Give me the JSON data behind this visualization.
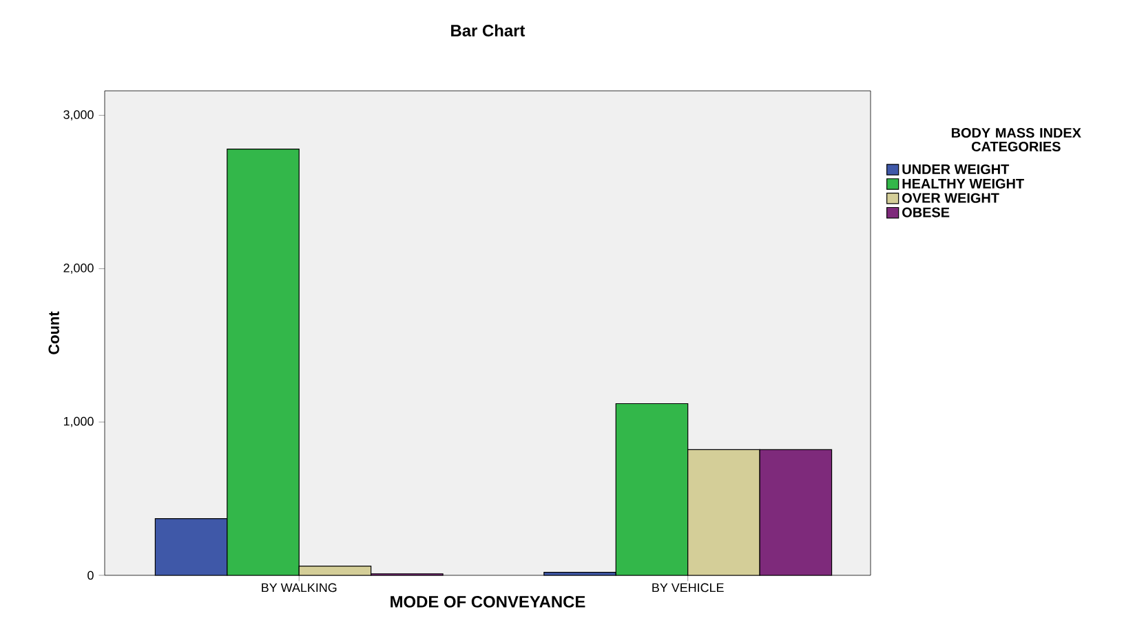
{
  "chart_data": {
    "type": "bar",
    "title": "Bar Chart",
    "xlabel": "MODE OF CONVEYANCE",
    "ylabel": "Count",
    "legend_title": "BODY MASS INDEX CATEGORIES",
    "categories": [
      "BY WALKING",
      "BY VEHICLE"
    ],
    "series": [
      {
        "name": "UNDER WEIGHT",
        "color": "#3f58a8",
        "values": [
          370,
          20
        ]
      },
      {
        "name": "HEALTHY WEIGHT",
        "color": "#33b74a",
        "values": [
          2780,
          1120
        ]
      },
      {
        "name": "OVER WEIGHT",
        "color": "#d4ce98",
        "values": [
          60,
          820
        ]
      },
      {
        "name": "OBESE",
        "color": "#7e2a7b",
        "values": [
          10,
          820
        ]
      }
    ],
    "ylim": [
      0,
      3160
    ],
    "yticks": [
      {
        "value": 0,
        "label": "0"
      },
      {
        "value": 1000,
        "label": "1,000"
      },
      {
        "value": 2000,
        "label": "2,000"
      },
      {
        "value": 3000,
        "label": "3,000"
      }
    ],
    "grid": false,
    "legend": "right"
  }
}
